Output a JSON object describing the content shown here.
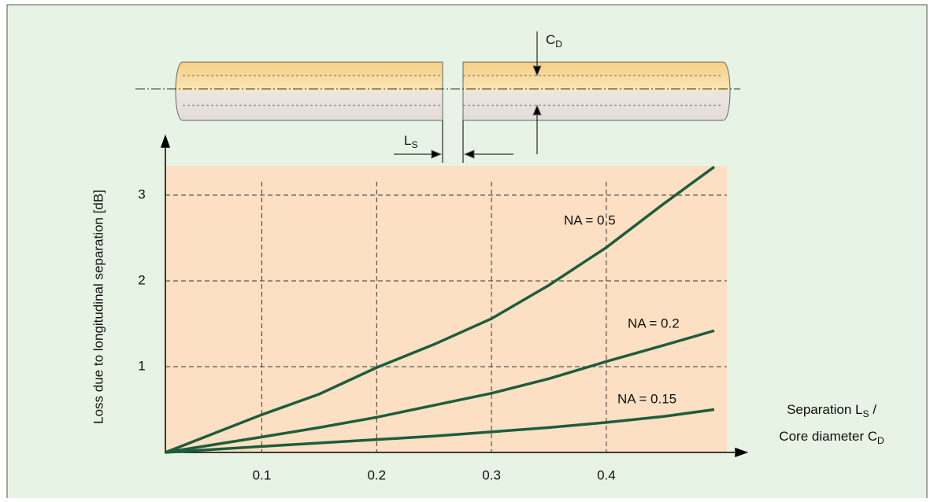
{
  "chart_data": {
    "type": "line",
    "ylabel": "Loss due to longitudinal separation [dB]",
    "xlabel": {
      "line1": [
        "Separation L",
        "S",
        " /"
      ],
      "line2": [
        "Core diameter C",
        "D"
      ]
    },
    "diagram": {
      "core": [
        "C",
        "D"
      ],
      "gap": [
        "L",
        "S"
      ]
    },
    "x": [
      0.016,
      0.1,
      0.15,
      0.2,
      0.25,
      0.3,
      0.35,
      0.4,
      0.45,
      0.494
    ],
    "series": [
      {
        "name": "NA = 0.5",
        "color": "#1d5e3c",
        "values": [
          0,
          0.44,
          0.68,
          0.99,
          1.26,
          1.56,
          1.95,
          2.39,
          2.9,
          3.33
        ]
      },
      {
        "name": "NA = 0.2",
        "color": "#1d5e3c",
        "values": [
          0,
          0.18,
          0.29,
          0.41,
          0.55,
          0.69,
          0.86,
          1.06,
          1.25,
          1.42
        ]
      },
      {
        "name": "NA = 0.15",
        "color": "#1d5e3c",
        "values": [
          0,
          0.07,
          0.11,
          0.15,
          0.19,
          0.24,
          0.29,
          0.35,
          0.42,
          0.5
        ]
      }
    ],
    "xlim": [
      0.016,
      0.505
    ],
    "ylim": [
      0,
      3.34
    ],
    "xticks": [
      0.1,
      0.2,
      0.3,
      0.4
    ],
    "yticks": [
      1,
      2,
      3
    ],
    "grid": true
  }
}
